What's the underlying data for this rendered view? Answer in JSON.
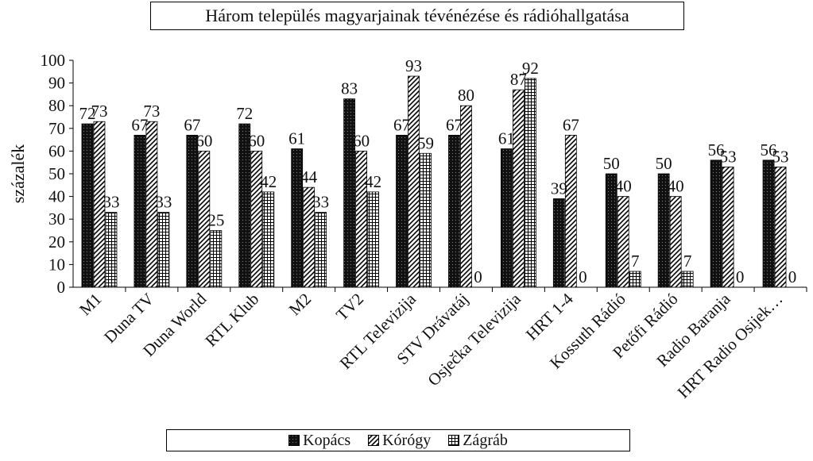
{
  "chart_data": {
    "type": "bar",
    "title": "Három település magyarjainak tévénézése és rádióhallgatása",
    "ylabel": "százalék",
    "ylim": [
      0,
      100
    ],
    "yticks": [
      0,
      10,
      20,
      30,
      40,
      50,
      60,
      70,
      80,
      90,
      100
    ],
    "categories": [
      "M1",
      "Duna TV",
      "Duna World",
      "RTL Klub",
      "M2",
      "TV2",
      "RTL Televizija",
      "STV Drávatáj",
      "Osječka Televizija",
      "HRT 1-4",
      "Kossuth Rádió",
      "Petőfi Rádió",
      "Radio Baranja",
      "HRT Radio Osijek…"
    ],
    "series": [
      {
        "name": "Kopács",
        "values": [
          72,
          67,
          67,
          72,
          61,
          83,
          67,
          67,
          61,
          39,
          50,
          50,
          56,
          56
        ],
        "pattern": "dots-dark"
      },
      {
        "name": "Kórógy",
        "values": [
          73,
          73,
          60,
          60,
          44,
          60,
          93,
          80,
          87,
          67,
          40,
          40,
          53,
          53
        ],
        "pattern": "diagonal"
      },
      {
        "name": "Zágráb",
        "values": [
          33,
          33,
          25,
          42,
          33,
          42,
          59,
          0,
          92,
          0,
          7,
          7,
          0,
          0
        ],
        "pattern": "grid"
      }
    ],
    "grid": false,
    "legend_position": "bottom"
  }
}
